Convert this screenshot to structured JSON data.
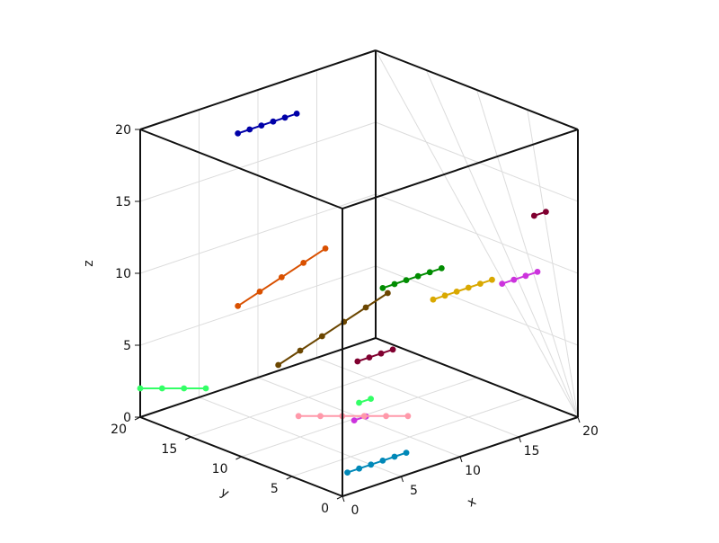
{
  "chart_data": {
    "type": "line3d",
    "title": "",
    "xlabel": "x",
    "ylabel": "y",
    "zlabel": "z",
    "xlim": [
      0,
      20
    ],
    "ylim": [
      0,
      20
    ],
    "zlim": [
      0,
      20
    ],
    "xticks": [
      "0",
      "5",
      "10",
      "15",
      "20"
    ],
    "yticks": [
      "0",
      "5",
      "10",
      "15",
      "20"
    ],
    "zticks": [
      "0",
      "5",
      "10",
      "15",
      "20"
    ],
    "grid": true,
    "legend": "none",
    "series": [
      {
        "color": "#0000a8",
        "x": [
          4,
          5,
          6,
          7,
          8,
          9
        ],
        "y": [
          15,
          15,
          15,
          15,
          15,
          15
        ],
        "z": [
          20,
          20,
          20,
          20,
          20,
          20
        ]
      },
      {
        "color": "#d95000",
        "x": [
          4,
          5,
          6,
          7,
          8
        ],
        "y": [
          15,
          14,
          13,
          12,
          11
        ],
        "z": [
          8,
          9,
          10,
          11,
          12
        ]
      },
      {
        "color": "#6b4600",
        "x": [
          4,
          5,
          6,
          7,
          8,
          9
        ],
        "y": [
          11,
          10,
          9,
          8,
          7,
          6
        ],
        "z": [
          5,
          6,
          7,
          8,
          9,
          10
        ]
      },
      {
        "color": "#008c00",
        "x": [
          6,
          7,
          8,
          9,
          10,
          11
        ],
        "y": [
          3,
          3,
          3,
          3,
          3,
          3
        ],
        "z": [
          12,
          12,
          12,
          12,
          12,
          12
        ]
      },
      {
        "color": "#800030",
        "x": [
          3,
          4,
          5,
          6
        ],
        "y": [
          2,
          2,
          2,
          2
        ],
        "z": [
          8,
          8,
          8,
          8
        ]
      },
      {
        "color": "#800030",
        "x": [
          18,
          19
        ],
        "y": [
          2,
          2
        ],
        "z": [
          14,
          14
        ]
      },
      {
        "color": "#d9a800",
        "x": [
          12,
          13,
          14,
          15,
          16,
          17
        ],
        "y": [
          5,
          5,
          5,
          5,
          5,
          5
        ],
        "z": [
          9,
          9,
          9,
          9,
          9,
          9
        ]
      },
      {
        "color": "#cc33dd",
        "x": [
          17,
          18,
          19,
          20
        ],
        "y": [
          4,
          4,
          4,
          4
        ],
        "z": [
          9,
          9,
          9,
          9
        ]
      },
      {
        "color": "#cc33dd",
        "x": [
          1,
          2
        ],
        "y": [
          0,
          0
        ],
        "z": [
          5,
          5
        ]
      },
      {
        "color": "#33ff66",
        "x": [
          0,
          1,
          2,
          3
        ],
        "y": [
          20,
          19,
          18,
          17
        ],
        "z": [
          2,
          2,
          2,
          2
        ]
      },
      {
        "color": "#33ff66",
        "x": [
          10,
          11
        ],
        "y": [
          10,
          10
        ],
        "z": [
          1,
          1
        ]
      },
      {
        "color": "#ff99aa",
        "x": [
          4,
          5,
          6,
          7,
          8,
          9
        ],
        "y": [
          9,
          8,
          7,
          6,
          5,
          4
        ],
        "z": [
          2,
          2,
          2,
          2,
          2,
          2
        ]
      },
      {
        "color": "#0088b8",
        "x": [
          3,
          4,
          5,
          6,
          7,
          8
        ],
        "y": [
          3,
          3,
          3,
          3,
          3,
          3
        ],
        "z": [
          0,
          0,
          0,
          0,
          0,
          0
        ]
      }
    ]
  }
}
